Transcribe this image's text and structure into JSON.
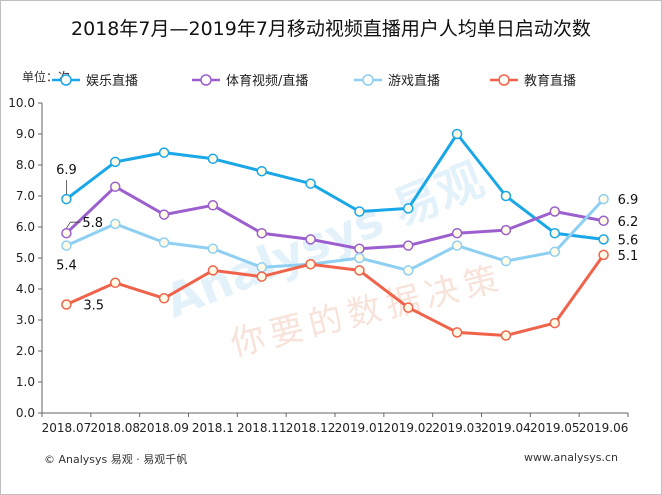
{
  "header": {
    "title": "2018年7月—2019年7月移动视频直播用户人均单日启动次数",
    "unit_label": "单位：次"
  },
  "footer": {
    "left": "© Analysys 易观 · 易观千帆",
    "right": "www.analysys.cn"
  },
  "watermark": {
    "brand": "Analysys 易观",
    "slogan": "你要的数据决策"
  },
  "chart_data": {
    "type": "line",
    "categories": [
      "2018.07",
      "2018.08",
      "2018.09",
      "2018.1",
      "2018.11",
      "2018.12",
      "2019.01",
      "2019.02",
      "2019.03",
      "2019.04",
      "2019.05",
      "2019.06"
    ],
    "ylim": [
      0,
      10
    ],
    "yticks": [
      "0.0",
      "1.0",
      "2.0",
      "3.0",
      "4.0",
      "5.0",
      "6.0",
      "7.0",
      "8.0",
      "9.0",
      "10.0"
    ],
    "grid": false,
    "legend_position": "top",
    "series": [
      {
        "name": "娱乐直播",
        "color": "#1aa7e8",
        "values": [
          6.9,
          8.1,
          8.4,
          8.2,
          7.8,
          7.4,
          6.5,
          6.6,
          9.0,
          7.0,
          5.8,
          5.6
        ],
        "labels": [
          {
            "index": 0,
            "text": "6.9"
          },
          {
            "index": 11,
            "text": "5.6"
          }
        ]
      },
      {
        "name": "体育视频/直播",
        "color": "#9b5fce",
        "values": [
          5.8,
          7.3,
          6.4,
          6.7,
          5.8,
          5.6,
          5.3,
          5.4,
          5.8,
          5.9,
          6.5,
          6.2
        ],
        "labels": [
          {
            "index": 0,
            "text": "5.8"
          },
          {
            "index": 11,
            "text": "6.2"
          }
        ]
      },
      {
        "name": "游戏直播",
        "color": "#8ecff2",
        "values": [
          5.4,
          6.1,
          5.5,
          5.3,
          4.7,
          4.8,
          5.0,
          4.6,
          5.4,
          4.9,
          5.2,
          6.9
        ],
        "labels": [
          {
            "index": 0,
            "text": "5.4"
          },
          {
            "index": 11,
            "text": "6.9"
          }
        ]
      },
      {
        "name": "教育直播",
        "color": "#f0634a",
        "values": [
          3.5,
          4.2,
          3.7,
          4.6,
          4.4,
          4.8,
          4.6,
          3.4,
          2.6,
          2.5,
          2.9,
          5.1
        ],
        "labels": [
          {
            "index": 0,
            "text": "3.5"
          },
          {
            "index": 11,
            "text": "5.1"
          }
        ]
      }
    ]
  }
}
